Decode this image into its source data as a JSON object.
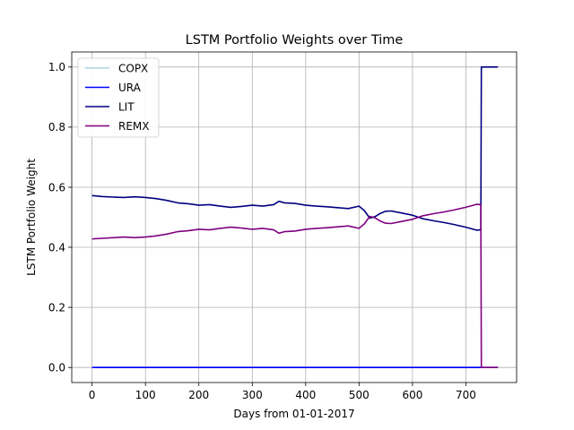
{
  "chart_data": {
    "type": "line",
    "title": "LSTM Portfolio Weights over Time",
    "xlabel": "Days from 01-01-2017",
    "ylabel": "LSTM Portfolio Weight",
    "xlim": [
      -38,
      795
    ],
    "ylim": [
      -0.05,
      1.05
    ],
    "xticks": [
      0,
      100,
      200,
      300,
      400,
      500,
      600,
      700
    ],
    "yticks": [
      0.0,
      0.2,
      0.4,
      0.6,
      0.8,
      1.0
    ],
    "grid": true,
    "legend_position": "top-left",
    "series": [
      {
        "name": "COPX",
        "color": "#add8e6",
        "x": [
          0,
          760
        ],
        "y": [
          0.0,
          0.0
        ]
      },
      {
        "name": "URA",
        "color": "#0000ff",
        "x": [
          0,
          760
        ],
        "y": [
          0.0,
          0.0
        ]
      },
      {
        "name": "LIT",
        "color": "#000080",
        "x": [
          0,
          20,
          40,
          60,
          80,
          100,
          120,
          140,
          160,
          180,
          200,
          220,
          240,
          260,
          280,
          300,
          320,
          340,
          350,
          360,
          380,
          400,
          420,
          440,
          460,
          480,
          500,
          510,
          520,
          530,
          540,
          550,
          560,
          580,
          600,
          620,
          640,
          660,
          680,
          700,
          720,
          728,
          729,
          735,
          760
        ],
        "y": [
          0.572,
          0.569,
          0.567,
          0.566,
          0.568,
          0.566,
          0.562,
          0.556,
          0.548,
          0.545,
          0.54,
          0.542,
          0.537,
          0.533,
          0.536,
          0.54,
          0.537,
          0.542,
          0.553,
          0.548,
          0.546,
          0.54,
          0.537,
          0.535,
          0.532,
          0.529,
          0.537,
          0.522,
          0.497,
          0.502,
          0.513,
          0.52,
          0.521,
          0.514,
          0.507,
          0.495,
          0.488,
          0.482,
          0.475,
          0.467,
          0.457,
          0.458,
          1.0,
          1.0,
          1.0
        ]
      },
      {
        "name": "REMX",
        "color": "#800080",
        "x": [
          0,
          20,
          40,
          60,
          80,
          100,
          120,
          140,
          160,
          180,
          200,
          220,
          240,
          260,
          280,
          300,
          320,
          340,
          350,
          360,
          380,
          400,
          420,
          440,
          460,
          480,
          500,
          510,
          520,
          530,
          540,
          550,
          560,
          580,
          600,
          620,
          640,
          660,
          680,
          700,
          720,
          728,
          729,
          735,
          760
        ],
        "y": [
          0.428,
          0.43,
          0.432,
          0.434,
          0.432,
          0.434,
          0.438,
          0.444,
          0.452,
          0.455,
          0.46,
          0.458,
          0.463,
          0.467,
          0.464,
          0.46,
          0.463,
          0.458,
          0.447,
          0.452,
          0.454,
          0.46,
          0.463,
          0.465,
          0.468,
          0.471,
          0.463,
          0.478,
          0.503,
          0.498,
          0.487,
          0.48,
          0.479,
          0.486,
          0.493,
          0.505,
          0.512,
          0.518,
          0.525,
          0.533,
          0.543,
          0.542,
          0.0,
          0.0,
          0.0
        ]
      }
    ]
  }
}
